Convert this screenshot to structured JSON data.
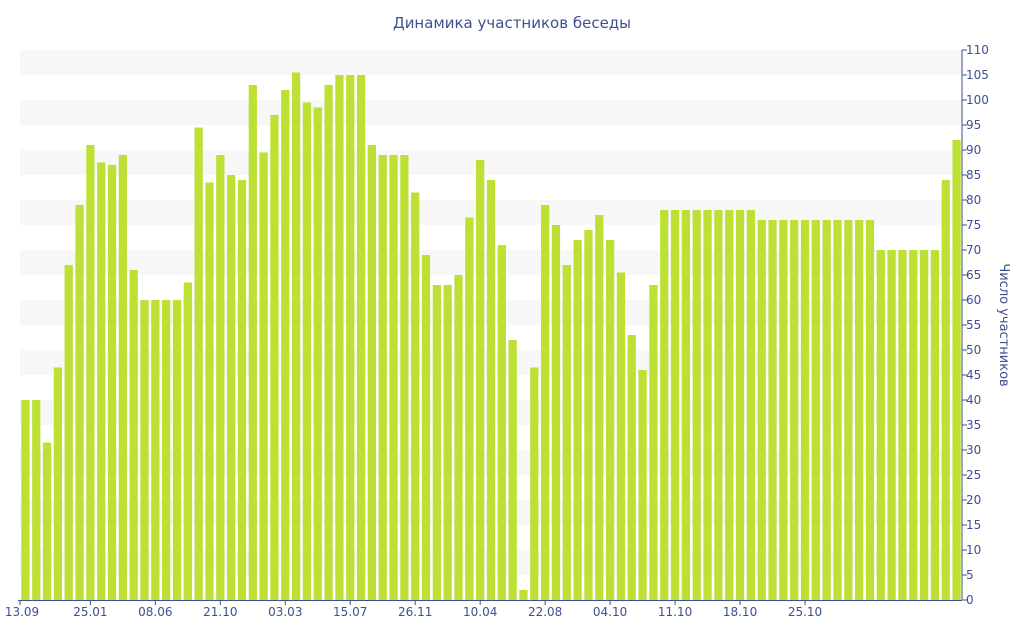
{
  "chart_data": {
    "type": "bar",
    "title": "Динамика участников беседы",
    "xlabel": "",
    "ylabel": "Число участников",
    "ylim": [
      0,
      110
    ],
    "y_ticks": [
      0,
      5,
      10,
      15,
      20,
      25,
      30,
      35,
      40,
      45,
      50,
      55,
      60,
      65,
      70,
      75,
      80,
      85,
      90,
      95,
      100,
      105,
      110
    ],
    "y_axis_side": "right",
    "grid": "alternating horizontal bands",
    "x_tick_labels": [
      "13.09",
      "25.01",
      "08.06",
      "21.10",
      "03.03",
      "15.07",
      "26.11",
      "10.04",
      "22.08",
      "04.10",
      "11.10",
      "18.10",
      "25.10"
    ],
    "x_tick_bar_index": [
      0,
      6,
      12,
      18,
      24,
      30,
      36,
      42,
      48,
      54,
      60,
      66,
      72
    ],
    "values": [
      40,
      40,
      31.5,
      46.5,
      67,
      79,
      91,
      87.5,
      87,
      89,
      66,
      60,
      60,
      60,
      60,
      63.5,
      94.5,
      83.5,
      89,
      85,
      84,
      103,
      89.5,
      97,
      102,
      105.5,
      99.5,
      98.5,
      103,
      105,
      105,
      105,
      91,
      89,
      89,
      89,
      81.5,
      69,
      63,
      63,
      65,
      76.5,
      88,
      84,
      71,
      52,
      2,
      46.5,
      79,
      75,
      67,
      72,
      74,
      77,
      72,
      65.5,
      53,
      46,
      63,
      78,
      78,
      78,
      78,
      78,
      78,
      78,
      78,
      78,
      76,
      76,
      76,
      76,
      76,
      76,
      76,
      76,
      76,
      76,
      76,
      70,
      70,
      70,
      70,
      70,
      70,
      84,
      92
    ]
  },
  "colors": {
    "bar": "#bde035",
    "band": "#f7f7f7",
    "text": "#3f4f8f",
    "axis": "#3f4f8f"
  }
}
